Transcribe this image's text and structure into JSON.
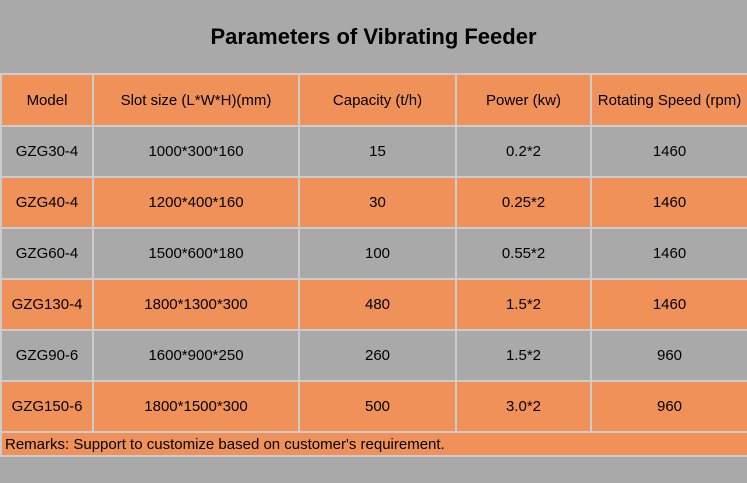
{
  "chart_data": {
    "type": "table",
    "title": "Parameters of Vibrating Feeder",
    "columns": [
      "Model",
      "Slot size (L*W*H)(mm)",
      "Capacity (t/h)",
      "Power (kw)",
      "Rotating Speed (rpm)"
    ],
    "rows": [
      [
        "GZG30-4",
        "1000*300*160",
        "15",
        "0.2*2",
        "1460"
      ],
      [
        "GZG40-4",
        "1200*400*160",
        "30",
        "0.25*2",
        "1460"
      ],
      [
        "GZG60-4",
        "1500*600*180",
        "100",
        "0.55*2",
        "1460"
      ],
      [
        "GZG130-4",
        "1800*1300*300",
        "480",
        "1.5*2",
        "1460"
      ],
      [
        "GZG90-6",
        "1600*900*250",
        "260",
        "1.5*2",
        "960"
      ],
      [
        "GZG150-6",
        "1800*1500*300",
        "500",
        "3.0*2",
        "960"
      ]
    ],
    "remarks": "Remarks: Support to customize based on customer's requirement.",
    "layout": {
      "row_striping": "gray/orange alternating, first data row gray",
      "grid": "on"
    }
  },
  "colors": {
    "background_gray": "#a9a9a9",
    "accent_orange": "#f1915a",
    "grid_line": "#cccccc",
    "text": "#000000"
  }
}
